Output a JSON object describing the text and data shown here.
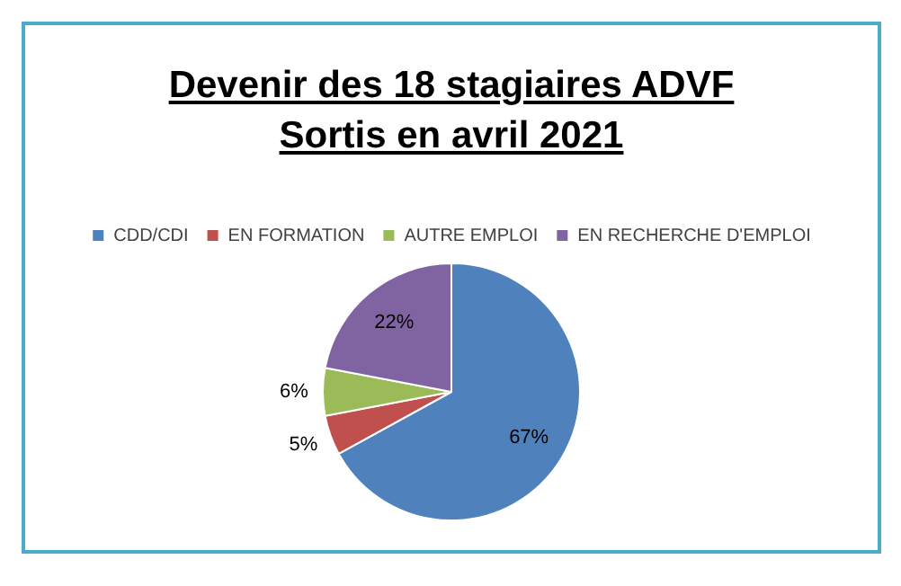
{
  "chart_data": {
    "type": "pie",
    "title": "Devenir des 18 stagiaires ADVF\nSortis en avril 2021",
    "categories": [
      "CDD/CDI",
      "EN FORMATION",
      "AUTRE EMPLOI",
      "EN RECHERCHE D'EMPLOI"
    ],
    "values": [
      67,
      5,
      6,
      22
    ],
    "colors": [
      "#4f81bd",
      "#c0504d",
      "#9bbb59",
      "#8064a2"
    ],
    "value_labels": [
      "67%",
      "5%",
      "6%",
      "22%"
    ],
    "legend": "top"
  }
}
